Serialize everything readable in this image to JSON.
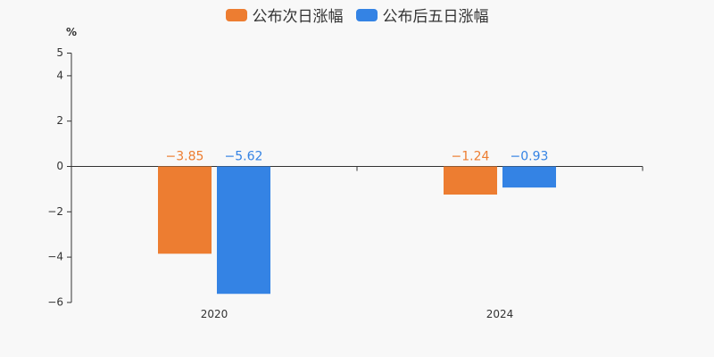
{
  "legend": {
    "series_0": "公布次日涨幅",
    "series_1": "公布后五日涨幅"
  },
  "y_unit": "%",
  "colors": {
    "series_0": "#ed7d31",
    "series_1": "#3483e4",
    "axis": "#333333",
    "label_text": "#333333"
  },
  "chart_data": {
    "type": "bar",
    "categories": [
      "2020",
      "2024"
    ],
    "series": [
      {
        "name": "公布次日涨幅",
        "values": [
          -3.85,
          -1.24
        ],
        "labels": [
          "−3.85",
          "−1.24"
        ]
      },
      {
        "name": "公布后五日涨幅",
        "values": [
          -5.62,
          -0.93
        ],
        "labels": [
          "−5.62",
          "−0.93"
        ]
      }
    ],
    "ylim": [
      -6,
      5
    ],
    "yticks": [
      5,
      4,
      2,
      0,
      -2,
      -4,
      -6
    ],
    "ytick_labels": [
      "5",
      "4",
      "2",
      "0",
      "−2",
      "−4",
      "−6"
    ],
    "ylabel": "%",
    "grid": false,
    "legend_position": "top-center"
  }
}
